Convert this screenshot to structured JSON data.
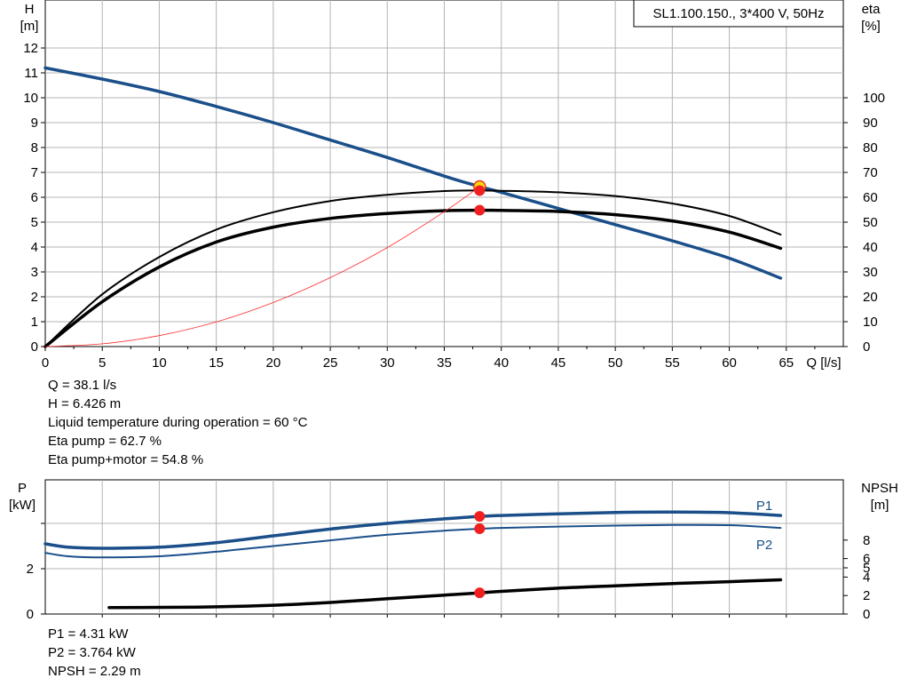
{
  "chart_data": [
    {
      "type": "line",
      "title": "SL1.100.150., 3*400 V, 50Hz",
      "legend_position": "top-right",
      "xlabel": "Q [l/s]",
      "ylabel": "H\n[m]",
      "y2label": "eta\n[%]",
      "xlim": [
        0,
        70
      ],
      "ylim": [
        0,
        14
      ],
      "y2lim": [
        0,
        140
      ],
      "grid": true,
      "x_ticks": [
        "0",
        "5",
        "10",
        "15",
        "20",
        "25",
        "30",
        "35",
        "40",
        "45",
        "50",
        "55",
        "60",
        "65"
      ],
      "y_ticks": [
        "0",
        "1",
        "2",
        "3",
        "4",
        "5",
        "6",
        "7",
        "8",
        "9",
        "10",
        "11",
        "12"
      ],
      "y2_ticks": [
        "0",
        "10",
        "20",
        "30",
        "40",
        "50",
        "60",
        "70",
        "80",
        "90",
        "100"
      ],
      "series": [
        {
          "key": "head",
          "axis": "left",
          "color": "#1b4f8a",
          "x": [
            0,
            5,
            10,
            15,
            20,
            25,
            30,
            35,
            38.1,
            40,
            45,
            50,
            55,
            60,
            64.5
          ],
          "y": [
            11.2,
            10.75,
            10.25,
            9.65,
            9.0,
            8.3,
            7.6,
            6.85,
            6.43,
            6.2,
            5.55,
            4.9,
            4.25,
            3.55,
            2.75
          ]
        },
        {
          "key": "eta_pump",
          "axis": "right",
          "color": "#000000",
          "x": [
            0,
            5,
            10,
            15,
            20,
            25,
            30,
            35,
            38.1,
            40,
            45,
            50,
            55,
            60,
            64.5
          ],
          "y": [
            0,
            21,
            36,
            47,
            54,
            58.5,
            61,
            62.5,
            62.7,
            62.6,
            62,
            60.5,
            57.5,
            52.5,
            45
          ]
        },
        {
          "key": "eta_pump_motor",
          "axis": "right",
          "color": "#000000",
          "x": [
            0,
            5,
            10,
            15,
            20,
            25,
            30,
            35,
            38.1,
            40,
            45,
            50,
            55,
            60,
            64.5
          ],
          "y": [
            0,
            18,
            32,
            42,
            48,
            51.5,
            53.5,
            54.6,
            54.8,
            54.7,
            54.3,
            53,
            50.5,
            46,
            39.5
          ]
        },
        {
          "key": "system",
          "axis": "left",
          "color": "#ff2a2a",
          "x": [
            0,
            5,
            10,
            15,
            20,
            25,
            30,
            35,
            38.1
          ],
          "y": [
            0,
            0.11,
            0.44,
            0.99,
            1.77,
            2.77,
            3.98,
            5.42,
            6.43
          ]
        }
      ],
      "markers": [
        {
          "x": 38.1,
          "y": 6.43,
          "axis": "left",
          "style": "yellow-ring"
        },
        {
          "x": 38.1,
          "y": 62.7,
          "axis": "right",
          "style": "red"
        },
        {
          "x": 38.1,
          "y": 54.8,
          "axis": "right",
          "style": "red"
        }
      ]
    },
    {
      "type": "line",
      "ylabel": "P\n[kW]",
      "y2label": "NPSH\n[m]",
      "xlim": [
        0,
        70
      ],
      "ylim": [
        0,
        6
      ],
      "y2lim": [
        0,
        12
      ],
      "grid": true,
      "y_ticks": [
        "0",
        "2"
      ],
      "y2_ticks": [
        "0",
        "2",
        "4",
        "5",
        "6",
        "8"
      ],
      "series": [
        {
          "key": "p1",
          "name": "P1",
          "axis": "left",
          "color": "#1b4f8a",
          "x": [
            0,
            2,
            5,
            10,
            15,
            20,
            25,
            30,
            35,
            38.1,
            40,
            45,
            50,
            55,
            60,
            64.5
          ],
          "y": [
            3.1,
            2.95,
            2.9,
            2.95,
            3.15,
            3.45,
            3.75,
            4.0,
            4.2,
            4.31,
            4.35,
            4.42,
            4.48,
            4.5,
            4.47,
            4.35
          ]
        },
        {
          "key": "p2",
          "name": "P2",
          "axis": "left",
          "color": "#1b4f8a",
          "x": [
            0,
            2,
            5,
            10,
            15,
            20,
            25,
            30,
            35,
            38.1,
            40,
            45,
            50,
            55,
            60,
            64.5
          ],
          "y": [
            2.7,
            2.55,
            2.5,
            2.55,
            2.75,
            3.0,
            3.25,
            3.5,
            3.68,
            3.76,
            3.8,
            3.86,
            3.9,
            3.93,
            3.92,
            3.8
          ]
        },
        {
          "key": "npsh",
          "axis": "right",
          "color": "#000000",
          "x": [
            5.6,
            10,
            15,
            20,
            25,
            30,
            35,
            38.1,
            40,
            45,
            50,
            55,
            60,
            64.5
          ],
          "y": [
            0.7,
            0.72,
            0.78,
            0.95,
            1.25,
            1.65,
            2.05,
            2.29,
            2.45,
            2.8,
            3.05,
            3.3,
            3.5,
            3.7
          ]
        }
      ],
      "markers": [
        {
          "x": 38.1,
          "y": 4.31,
          "axis": "left",
          "style": "red"
        },
        {
          "x": 38.1,
          "y": 3.764,
          "axis": "left",
          "style": "red"
        },
        {
          "x": 38.1,
          "y": 2.29,
          "axis": "right",
          "style": "red"
        }
      ]
    }
  ],
  "results_top": [
    "Q = 38.1 l/s",
    "H = 6.426 m",
    "Liquid temperature during operation = 60 °C",
    "Eta pump = 62.7 %",
    "Eta pump+motor = 54.8 %"
  ],
  "results_bottom": [
    "P1 = 4.31 kW",
    "P2 = 3.764 kW",
    "NPSH = 2.29 m"
  ]
}
